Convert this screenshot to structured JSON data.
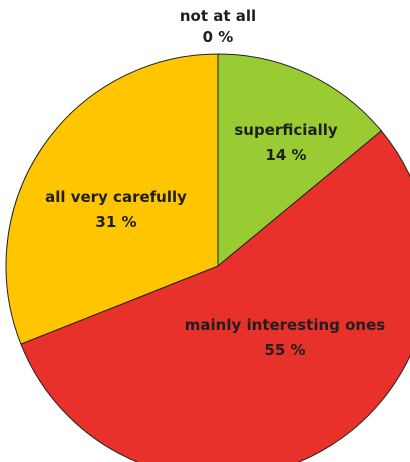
{
  "chart_data": {
    "type": "pie",
    "title": "",
    "unit": "%",
    "start": "top, clockwise",
    "slices": [
      {
        "name": "not at all",
        "value": 0,
        "color": "#ffffff"
      },
      {
        "name": "superficially",
        "value": 14,
        "color": "#99cc33"
      },
      {
        "name": "mainly interesting ones",
        "value": 55,
        "color": "#e8312a"
      },
      {
        "name": "all very carefully",
        "value": 31,
        "color": "#ffc600"
      }
    ],
    "labels": [
      {
        "name": "not at all",
        "value_text": "0 %"
      },
      {
        "name": "superficially",
        "value_text": "14 %"
      },
      {
        "name": "mainly interesting ones",
        "value_text": "55 %"
      },
      {
        "name": "all very carefully",
        "value_text": "31 %"
      }
    ]
  }
}
